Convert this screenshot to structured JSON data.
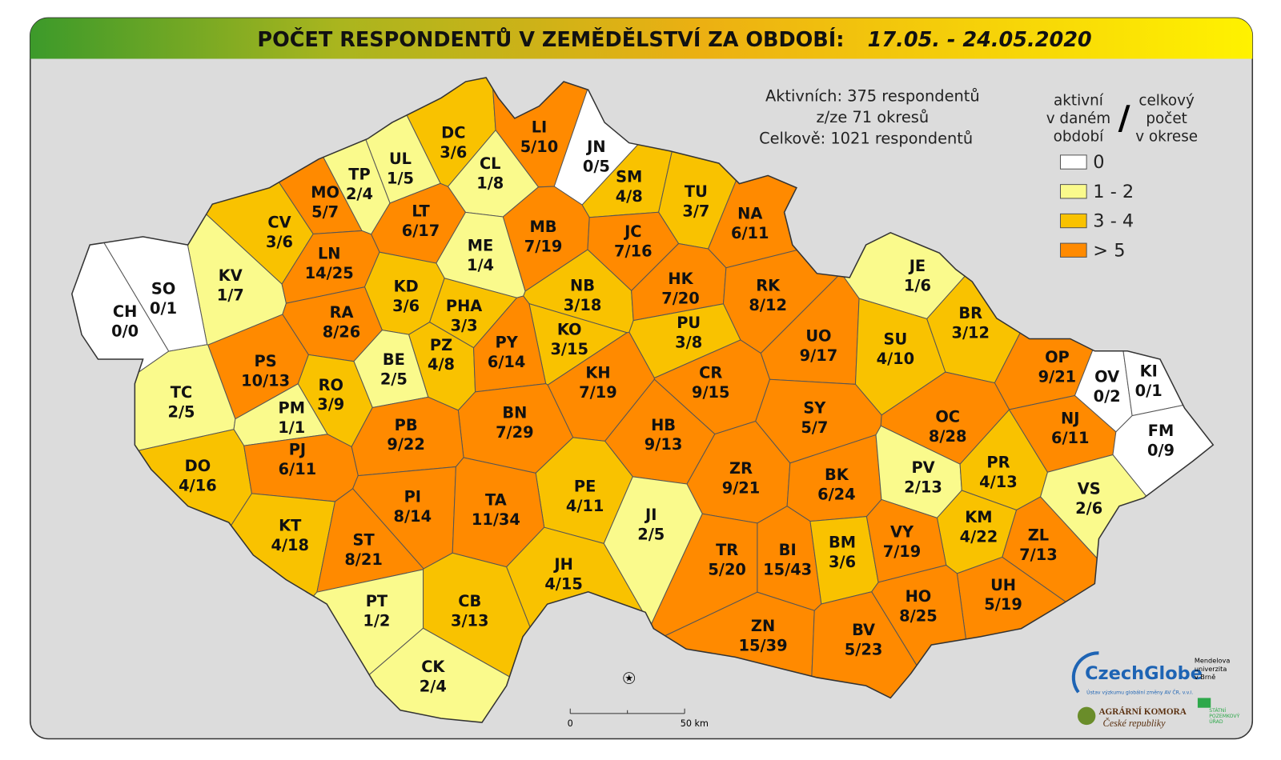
{
  "title": "POČET RESPONDENTŮ V ZEMĚDĚLSTVÍ ZA OBDOBÍ:",
  "period": "17.05. - 24.05.2020",
  "info": [
    "Aktivních: 375 respondentů",
    "z/ze 71 okresů",
    "Celkově: 1021 respondentů"
  ],
  "legend": {
    "left": [
      "aktivní",
      "v daném",
      "období"
    ],
    "separator": "/",
    "right": [
      "celkový",
      "počet",
      "v okrese"
    ],
    "items": [
      {
        "label": "0",
        "color": "#ffffff"
      },
      {
        "label": "1 - 2",
        "color": "#fafa8c"
      },
      {
        "label": "3 - 4",
        "color": "#f9c200"
      },
      {
        "label": "> 5",
        "color": "#ff8a00"
      }
    ]
  },
  "scale_bar": {
    "start": "0",
    "end": "50 km"
  },
  "logos": {
    "czechglobe": "CzechGlobe",
    "czechglobe_sub": "Ústav výzkumu globální změny AV ČR, v.v.i.",
    "mendel": [
      "Mendelova",
      "univerzita",
      "v Brně"
    ],
    "komora": [
      "AGRÁRNÍ KOMORA",
      "České republiky"
    ],
    "spu": [
      "STÁTNÍ",
      "POZEMKOVÝ",
      "ÚŘAD"
    ]
  },
  "districts": [
    {
      "code": "DC",
      "count": "3/6",
      "color": "#f9c200"
    },
    {
      "code": "LI",
      "count": "5/10",
      "color": "#ff8a00"
    },
    {
      "code": "JN",
      "count": "0/5",
      "color": "#ffffff"
    },
    {
      "code": "CL",
      "count": "1/8",
      "color": "#fafa8c"
    },
    {
      "code": "UL",
      "count": "1/5",
      "color": "#fafa8c"
    },
    {
      "code": "TP",
      "count": "2/4",
      "color": "#fafa8c"
    },
    {
      "code": "MO",
      "count": "5/7",
      "color": "#ff8a00"
    },
    {
      "code": "CV",
      "count": "3/6",
      "color": "#f9c200"
    },
    {
      "code": "KV",
      "count": "1/7",
      "color": "#fafa8c"
    },
    {
      "code": "SO",
      "count": "0/1",
      "color": "#ffffff"
    },
    {
      "code": "CH",
      "count": "0/0",
      "color": "#ffffff"
    },
    {
      "code": "LT",
      "count": "6/17",
      "color": "#ff8a00"
    },
    {
      "code": "SM",
      "count": "4/8",
      "color": "#f9c200"
    },
    {
      "code": "TU",
      "count": "3/7",
      "color": "#f9c200"
    },
    {
      "code": "NA",
      "count": "6/11",
      "color": "#ff8a00"
    },
    {
      "code": "ME",
      "count": "1/4",
      "color": "#fafa8c"
    },
    {
      "code": "MB",
      "count": "7/19",
      "color": "#ff8a00"
    },
    {
      "code": "JC",
      "count": "7/16",
      "color": "#ff8a00"
    },
    {
      "code": "LN",
      "count": "14/25",
      "color": "#ff8a00"
    },
    {
      "code": "KD",
      "count": "3/6",
      "color": "#f9c200"
    },
    {
      "code": "NB",
      "count": "3/18",
      "color": "#f9c200"
    },
    {
      "code": "HK",
      "count": "7/20",
      "color": "#ff8a00"
    },
    {
      "code": "RK",
      "count": "8/12",
      "color": "#ff8a00"
    },
    {
      "code": "JE",
      "count": "1/6",
      "color": "#fafa8c"
    },
    {
      "code": "RA",
      "count": "8/26",
      "color": "#ff8a00"
    },
    {
      "code": "PHA",
      "count": "3/3",
      "color": "#f9c200"
    },
    {
      "code": "KO",
      "count": "3/15",
      "color": "#f9c200"
    },
    {
      "code": "PU",
      "count": "3/8",
      "color": "#f9c200"
    },
    {
      "code": "PS",
      "count": "10/13",
      "color": "#ff8a00"
    },
    {
      "code": "BE",
      "count": "2/5",
      "color": "#fafa8c"
    },
    {
      "code": "PZ",
      "count": "4/8",
      "color": "#f9c200"
    },
    {
      "code": "PY",
      "count": "6/14",
      "color": "#ff8a00"
    },
    {
      "code": "UO",
      "count": "9/17",
      "color": "#ff8a00"
    },
    {
      "code": "SU",
      "count": "4/10",
      "color": "#f9c200"
    },
    {
      "code": "BR",
      "count": "3/12",
      "color": "#f9c200"
    },
    {
      "code": "OP",
      "count": "9/21",
      "color": "#ff8a00"
    },
    {
      "code": "OV",
      "count": "0/2",
      "color": "#ffffff"
    },
    {
      "code": "KI",
      "count": "0/1",
      "color": "#ffffff"
    },
    {
      "code": "TC",
      "count": "2/5",
      "color": "#fafa8c"
    },
    {
      "code": "RO",
      "count": "3/9",
      "color": "#f9c200"
    },
    {
      "code": "PM",
      "count": "1/1",
      "color": "#fafa8c"
    },
    {
      "code": "KH",
      "count": "7/19",
      "color": "#ff8a00"
    },
    {
      "code": "CR",
      "count": "9/15",
      "color": "#ff8a00"
    },
    {
      "code": "BN",
      "count": "7/29",
      "color": "#ff8a00"
    },
    {
      "code": "SY",
      "count": "5/7",
      "color": "#ff8a00"
    },
    {
      "code": "OC",
      "count": "8/28",
      "color": "#ff8a00"
    },
    {
      "code": "NJ",
      "count": "6/11",
      "color": "#ff8a00"
    },
    {
      "code": "FM",
      "count": "0/9",
      "color": "#ffffff"
    },
    {
      "code": "PB",
      "count": "9/22",
      "color": "#ff8a00"
    },
    {
      "code": "HB",
      "count": "9/13",
      "color": "#ff8a00"
    },
    {
      "code": "DO",
      "count": "4/16",
      "color": "#f9c200"
    },
    {
      "code": "PJ",
      "count": "6/11",
      "color": "#ff8a00"
    },
    {
      "code": "ZR",
      "count": "9/21",
      "color": "#ff8a00"
    },
    {
      "code": "BK",
      "count": "6/24",
      "color": "#ff8a00"
    },
    {
      "code": "PV",
      "count": "2/13",
      "color": "#fafa8c"
    },
    {
      "code": "PR",
      "count": "4/13",
      "color": "#f9c200"
    },
    {
      "code": "VS",
      "count": "2/6",
      "color": "#fafa8c"
    },
    {
      "code": "PE",
      "count": "4/11",
      "color": "#f9c200"
    },
    {
      "code": "PI",
      "count": "8/14",
      "color": "#ff8a00"
    },
    {
      "code": "TA",
      "count": "11/34",
      "color": "#ff8a00"
    },
    {
      "code": "KM",
      "count": "4/22",
      "color": "#f9c200"
    },
    {
      "code": "KT",
      "count": "4/18",
      "color": "#f9c200"
    },
    {
      "code": "JI",
      "count": "2/5",
      "color": "#fafa8c"
    },
    {
      "code": "ST",
      "count": "8/21",
      "color": "#ff8a00"
    },
    {
      "code": "ZL",
      "count": "7/13",
      "color": "#ff8a00"
    },
    {
      "code": "TR",
      "count": "5/20",
      "color": "#ff8a00"
    },
    {
      "code": "BI",
      "count": "15/43",
      "color": "#ff8a00"
    },
    {
      "code": "BM",
      "count": "3/6",
      "color": "#f9c200"
    },
    {
      "code": "VY",
      "count": "7/19",
      "color": "#ff8a00"
    },
    {
      "code": "JH",
      "count": "4/15",
      "color": "#f9c200"
    },
    {
      "code": "UH",
      "count": "5/19",
      "color": "#ff8a00"
    },
    {
      "code": "HO",
      "count": "8/25",
      "color": "#ff8a00"
    },
    {
      "code": "PT",
      "count": "1/2",
      "color": "#fafa8c"
    },
    {
      "code": "CB",
      "count": "3/13",
      "color": "#f9c200"
    },
    {
      "code": "ZN",
      "count": "15/39",
      "color": "#ff8a00"
    },
    {
      "code": "BV",
      "count": "5/23",
      "color": "#ff8a00"
    },
    {
      "code": "CK",
      "count": "2/4",
      "color": "#fafa8c"
    }
  ]
}
